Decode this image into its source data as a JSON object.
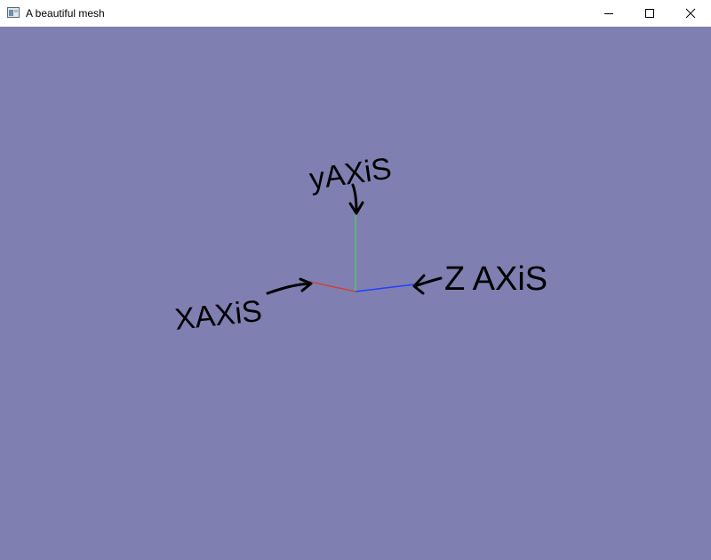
{
  "window": {
    "title": "A beautiful mesh",
    "controls": {
      "minimize": "minimize",
      "maximize": "maximize",
      "close": "close"
    }
  },
  "scene": {
    "background_color": "#7f7fb2",
    "axes": [
      {
        "name": "x",
        "color": "#d04030"
      },
      {
        "name": "y",
        "color": "#50d050"
      },
      {
        "name": "z",
        "color": "#2040ff"
      }
    ],
    "annotations": {
      "y_label": "yAXiS",
      "x_label": "XAXiS",
      "z_label": "Z AXiS",
      "ink_color": "#000000"
    }
  }
}
